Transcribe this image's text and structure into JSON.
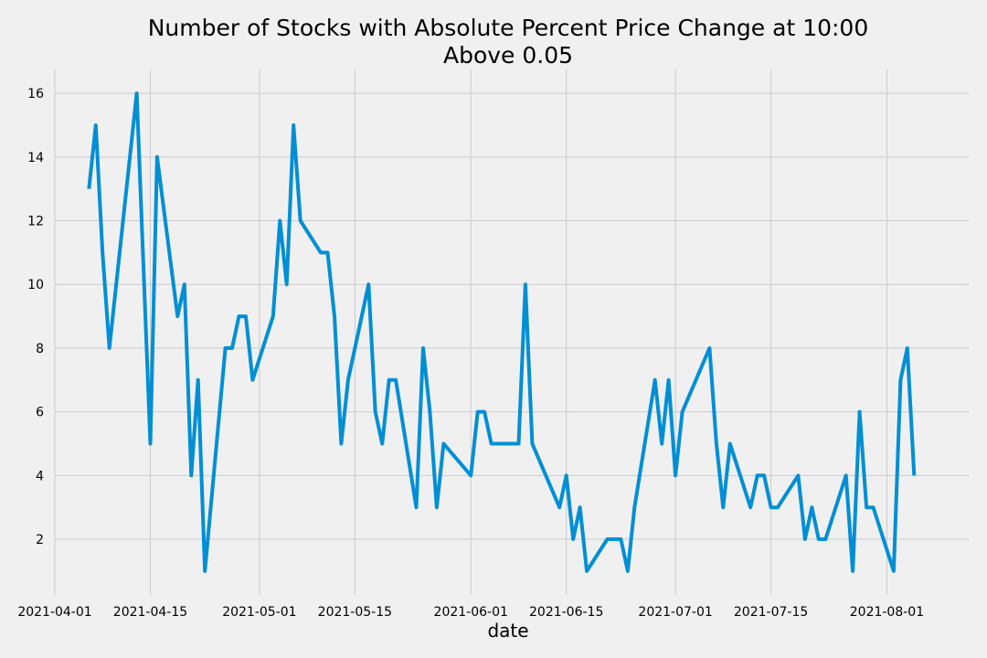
{
  "chart_data": {
    "type": "line",
    "title_line1": "Number of Stocks with Absolute Percent Price Change at 10:00",
    "title_line2": "Above 0.05",
    "xlabel": "date",
    "ylabel": "",
    "xlim": [
      "2021-04-01",
      "2021-08-13"
    ],
    "ylim": [
      0.25,
      16.75
    ],
    "x_ticks": [
      "2021-04-01",
      "2021-04-15",
      "2021-05-01",
      "2021-05-15",
      "2021-06-01",
      "2021-06-15",
      "2021-07-01",
      "2021-07-15",
      "2021-08-01"
    ],
    "y_ticks": [
      2,
      4,
      6,
      8,
      10,
      12,
      14,
      16
    ],
    "grid": true,
    "line_color": "#008fd5",
    "background": "#f0f0f0",
    "series": [
      {
        "x": [
          "2021-04-06",
          "2021-04-07",
          "2021-04-08",
          "2021-04-09",
          "2021-04-13",
          "2021-04-15",
          "2021-04-16",
          "2021-04-19",
          "2021-04-20",
          "2021-04-21",
          "2021-04-22",
          "2021-04-23",
          "2021-04-26",
          "2021-04-27",
          "2021-04-28",
          "2021-04-29",
          "2021-04-30",
          "2021-05-03",
          "2021-05-04",
          "2021-05-05",
          "2021-05-06",
          "2021-05-07",
          "2021-05-10",
          "2021-05-11",
          "2021-05-12",
          "2021-05-13",
          "2021-05-14",
          "2021-05-17",
          "2021-05-18",
          "2021-05-19",
          "2021-05-20",
          "2021-05-21",
          "2021-05-24",
          "2021-05-25",
          "2021-05-26",
          "2021-05-27",
          "2021-05-28",
          "2021-06-01",
          "2021-06-02",
          "2021-06-03",
          "2021-06-04",
          "2021-06-07",
          "2021-06-08",
          "2021-06-09",
          "2021-06-10",
          "2021-06-14",
          "2021-06-15",
          "2021-06-16",
          "2021-06-17",
          "2021-06-18",
          "2021-06-21",
          "2021-06-22",
          "2021-06-23",
          "2021-06-24",
          "2021-06-25",
          "2021-06-28",
          "2021-06-29",
          "2021-06-30",
          "2021-07-01",
          "2021-07-02",
          "2021-07-06",
          "2021-07-07",
          "2021-07-08",
          "2021-07-09",
          "2021-07-12",
          "2021-07-13",
          "2021-07-14",
          "2021-07-15",
          "2021-07-16",
          "2021-07-19",
          "2021-07-20",
          "2021-07-21",
          "2021-07-22",
          "2021-07-23",
          "2021-07-26",
          "2021-07-27",
          "2021-07-28",
          "2021-07-29",
          "2021-07-30",
          "2021-08-02",
          "2021-08-03",
          "2021-08-04",
          "2021-08-05"
        ],
        "values": [
          13,
          15,
          11,
          8,
          16,
          5,
          14,
          9,
          10,
          4,
          7,
          1,
          8,
          8,
          9,
          9,
          7,
          9,
          12,
          10,
          15,
          12,
          11,
          11,
          9,
          5,
          7,
          10,
          6,
          5,
          7,
          7,
          3,
          8,
          6,
          3,
          5,
          4,
          6,
          6,
          5,
          5,
          5,
          10,
          5,
          3,
          4,
          2,
          3,
          1,
          2,
          2,
          2,
          1,
          3,
          7,
          5,
          7,
          4,
          6,
          8,
          5,
          3,
          5,
          3,
          4,
          4,
          3,
          3,
          4,
          2,
          3,
          2,
          2,
          4,
          1,
          6,
          3,
          3,
          1,
          7,
          8,
          4
        ]
      }
    ]
  }
}
